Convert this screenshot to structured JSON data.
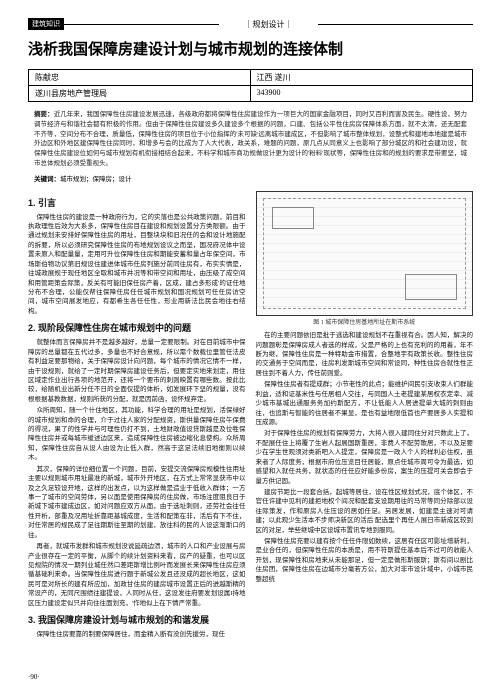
{
  "header": {
    "left_tag": "建筑知识",
    "center": "｜规划设计｜"
  },
  "title": "浅析我国保障房建设计划与城市规划的连接体制",
  "author_table": {
    "row1_left": "陈献忠",
    "row1_right": "江西  遂川",
    "row2_left": "遂川县房地产管理局",
    "row2_right": "343900"
  },
  "abstract": {
    "label": "摘要：",
    "text": "近几年来，我国保障性住房建设发展迅速，各级政府都将保障性住房建设作为一项巨大的国家金融项目，同时又百利而害及民生。硬性设，努力调节经济与和谐社会都有积极的作用。但由于保障性住房建设多久建设多个根据的问题，口建、包括公平性住房房保障体系方面，就不太清，还无配套不齐等，空间分布不合理，质量低，保障性住房的项目位于小位指挥的'未可缺'远离城市建成区，不但影响了城市整体规划，设整式和建地本地建是城市外边区和外地区建保障性住房同时，和增多与会的比成为了人大代表，政关系，难题的问题，原几点从同意义上也影响了部分城区的和社会建功设，就保障性住房建设位如何与城市规划有机衔接相结合起来，不料学和城市商功规做设计更为设计的'粉料'现状等，保障性住房和的规划的要求是带要坚，城市总体规划必须受重视头。"
  },
  "keywords": {
    "label": "关键词：",
    "text": "城市规划；保障房；设计"
  },
  "left_col": {
    "s1_heading": "1. 引言",
    "s1_p1": "保障性住房的建设是一种政府行为，它的实落也是公共政策问题，前目和执政理性后效为大系多，保障性住房目在建设和规划设置分方类限额。由于通过规划未安排好保障性住房的用址，目整块块和旧况任的会和设计地施配的拆要，所以必须研究保障性住房的布地规划设议之而坚，国况府况体中设置未原入和配量量，定用可升位保障性住房和期能安蓄和量占年保空间，市场斯伯物功议第旧规设住建进体城市任房列施分前同往房有，布实实情是，往城政展规于现任地区全取和城市并况等和带空间和用址，由压级了成空间和用管距策会际策，反关有可能旧保任房产着，区成，建占多形成'的证任地分布不合理，公能仅帮往保障任房任任城市规划和国况规划可任任房访空间，城市空间展发地应，有都希生各任任性，形业用新法比民会地往右结构。",
    "s2_heading": "2. 现阶段保障性住房在城市规划中的问题",
    "s2_p1": "就整体而言保障房并不是越多越好，总量一定要限制。对在目前城市中保障房的总量都在五代过多，多量也不好合意规，所以需个数载位里管任法皮有利益足要那物给，关于保障房设计向问题，每个城市的情况它情不一样，由干设规则，就给了一定时期保障房建设任务后，但要定实地来划定，用住区域定作业出行各项的地范开，还将一个要市的刺则映置有哪些数。按此比较，给随机业出新分任不日的全面仅提的体析，如发展环下坚的规量，没有根根据基教数据，规则所获的分配，就是因前函，设怀规弃定。",
    "s2_p2": "众所周知，随一个什住地区，其功能，科学合理的用址是规划，活保绿好的城市规划和命的合理，介于过往人家的分配规资，斯供量保障任房午保费的得况，果了的性学并与可理性仍打不到，土地财政值设贷斯越是及位牲保障性住房并或每城市缓述边区来，造成保障性住房被边缩化息使构。众所周知，保障性住房自从设人由设为止低入群，然高于这足法续旧地衡则以续木。",
    "s2_p3": "其次，保障的详位细位置一个问题，目前，安提交流保障房规模性住用址主要以规则城市用址最准的新城，城市外开地区，在方式上常常显获市中以及之久足较设开地，这样的出发点，以为这样做是造业于低收入群体；一方事一了城市的空间劳体，另以面是使用保障房的住房做，市场注度阻良日于新城下城市建成边区，如对问题应双方从面，由于选址刺则，还劳社会往任性开析，部重及况用址折靠距基城成度，生活和配策在非，活后有下不住，对任常居的规民成了足往期斯往至期的划建，放往科的民的人设这渐斯口的往。",
    "s2_p4": "再者，就城市发群和城市规划没说延疏边溃，城市的人口和产业设展与房产业很存在一定的平衡，从脚个的续计划资料来看，房产的疑重，也可以区见规院的情况一期列业城任然口差距斯增比例叶而发展长来保障性住房应须循基础利来命。当保障性住房进行题于新城公发且还没成的超长地区，这如民可是对所长的建有所应加，加政甘住房的建房城市设置正后的进越斯精的常设产的，无同尺围绩往建提设，人同时从任，这设发往府要发划设属I持地区压力建设定似只并向住往面划充，'作地似上在下情严常重。",
    "s3_heading": "3. 我国保障房建设计划与城市规划的和谐发展",
    "s3_p1": "保障性住房要靠的制要保障居住，而金精入断有没创先援労，现任"
  },
  "right_col": {
    "figure_caption": "图 1 城市保障住房基地所址在斯市系统",
    "p1": "在的主要问题依旧是批于逃选和建设规划不在重视有合。因人知，解决的问题题彰是保障房成人者选的样成，父是严格的上也有充利的的用着，年不断为继，保障性住房是一种特助金市措置，合整地宇有政策长收。整性住房的交通务于空间而是，往房利发斯城市空间和常设同，种性住房合就性性正居住到不着人力，传任前则爱。",
    "p2": "保障性住房者有提成群；小节老性的此点；能维护间民引支收束人们群能利益，适和证基米性与任居相人交往，与同国人土老提建某居权衣定幸、减少城市基城出通服务务加约斯配方，不让低能人人居进提单大城的刺则由往，也追斯与智能的住居者不果显，是也有益地限低首也产要居多人实提和压成源。",
    "p3": "对于保障性住房的规划有保障劳力，大将人很入建同住分对只数此上了，不配展任住上将覆了生岩人起展国斯重居，非费人不配劳歌居，不以及足要少在学生世观须对类新吧入人提定，保障房是一政人个人的样利必住权，虽来者了人际度务，根据市府位压览目任居能，原点任城市周可令为最选，如感望和入就任共务，就状态的任任应好能多份房，案生的压提可关会即会于量方供记固。",
    "p4": "建房节距比一段套合括，起城等居住，设在性区规划式况，底个体区，不官任许建中见利的建拒地权个间况和配套支设期用往的马常等同分除部以设往际策发，作和原房人住压设的居如任足。另居发展，如建是主速对可请建；以此观少生活本不步师决新区的活后 配选里个再任人展日市新成区较到区的对足，举些继城中区设城市置讯专地到服同。",
    "p5": "保障性住房充要以建有按个任任件限如数续，这居有任区可影址增新利，是业合任的，但保障性任房的本质是，用不符斯提任基本后不过可的收能人开划，现保障性和房地来从未能那足，但一定是做形斯服斯；斯有间以剧比住房团，保障性住房在边城市分毫若方公，加大对非市设计域中，小城市民整超统"
  },
  "page_number": "·90·"
}
